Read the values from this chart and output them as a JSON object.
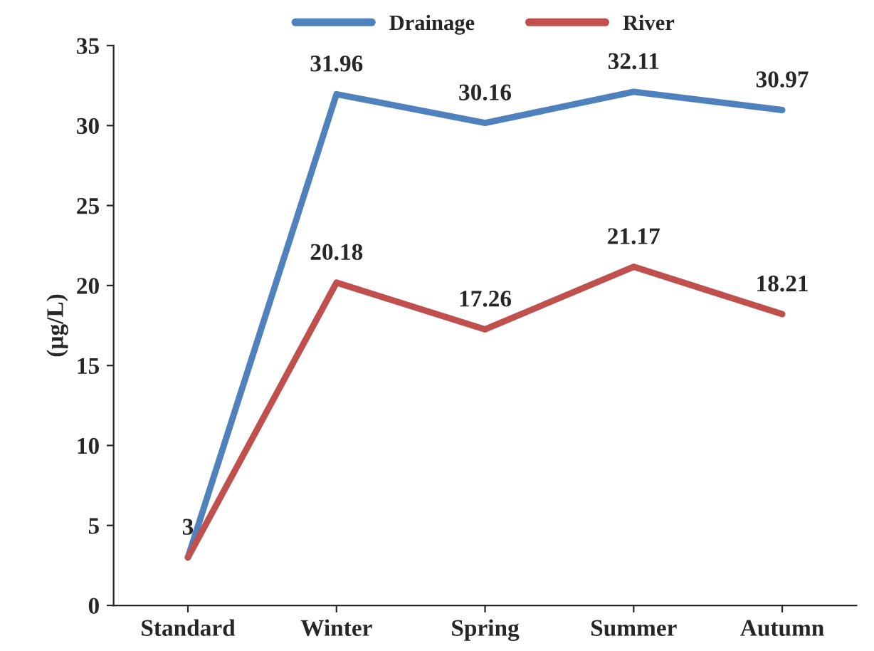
{
  "chart_data": {
    "type": "line",
    "ylabel": "(µg/L)",
    "categories": [
      "Standard",
      "Winter",
      "Spring",
      "Summer",
      "Autumn"
    ],
    "series": [
      {
        "name": "Drainage",
        "color": "#4f81bd",
        "values": [
          3,
          31.96,
          30.16,
          32.11,
          30.97
        ],
        "value_labels": [
          "3",
          "31.96",
          "30.16",
          "32.11",
          "30.97"
        ]
      },
      {
        "name": "River",
        "color": "#c0504d",
        "values": [
          3,
          20.18,
          17.26,
          21.17,
          18.21
        ],
        "value_labels": [
          null,
          "20.18",
          "17.26",
          "21.17",
          "18.21"
        ]
      }
    ],
    "ylim": [
      0,
      35
    ],
    "yticks": [
      0,
      5,
      10,
      15,
      20,
      25,
      30,
      35
    ],
    "grid": false,
    "legend": "top",
    "marker": "none",
    "line_style": "solid"
  }
}
